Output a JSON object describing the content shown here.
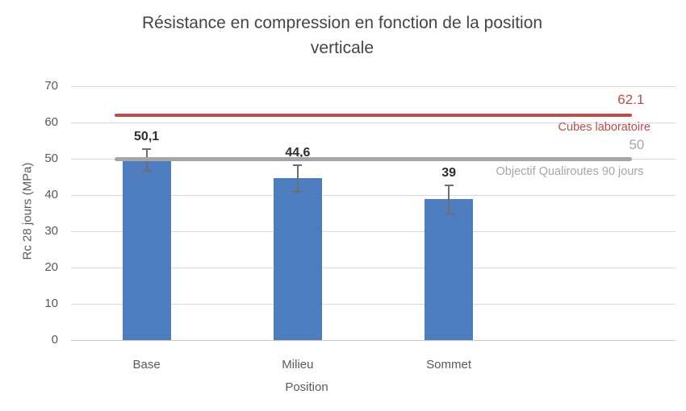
{
  "background": "#FFFFFF",
  "chart_data": {
    "type": "bar",
    "title": "Résistance en compression en fonction de la position verticale",
    "xlabel": "Position",
    "ylabel": "Rc 28 jours (MPa)",
    "ylim": [
      0,
      70
    ],
    "yticks": [
      0,
      10,
      20,
      30,
      40,
      50,
      60,
      70
    ],
    "grid": true,
    "legend_position": "none",
    "categories": [
      "Base",
      "Milieu",
      "Sommet"
    ],
    "values": [
      50.1,
      44.6,
      39
    ],
    "value_labels": [
      "50,1",
      "44,6",
      "39"
    ],
    "error_bars": {
      "plus": [
        2.6,
        3.6,
        3.7
      ],
      "minus": [
        3.4,
        3.7,
        4.1
      ]
    },
    "bar_color": "#4D7DBE",
    "reference_lines": [
      {
        "value": 62.1,
        "value_label": "62.1",
        "name": "Cubes laboratoire",
        "color": "#BF4B48"
      },
      {
        "value": 50,
        "value_label": "50",
        "name": "Objectif Qualiroutes 90 jours",
        "color": "#A6A6A6"
      }
    ],
    "colors": {
      "gridline": "#D9D9D9",
      "axis_line": "#C9C9C9",
      "tick_label": "#595959",
      "title": "#454545",
      "bar_value_label": "#2E2E2E",
      "error_bar": "#6E6E6E"
    }
  }
}
